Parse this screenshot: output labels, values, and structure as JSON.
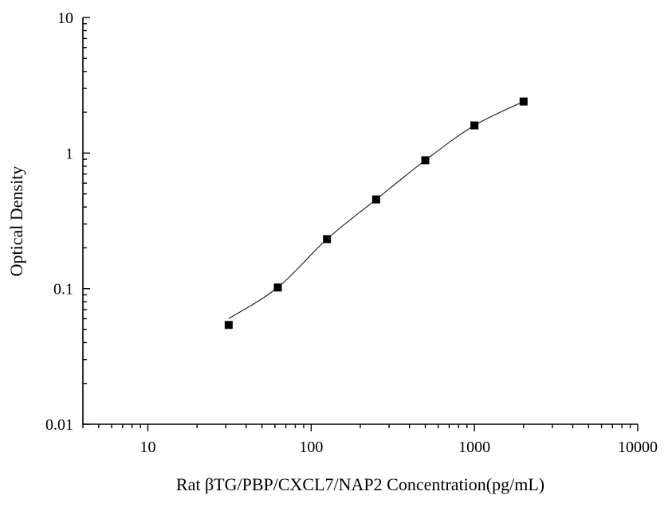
{
  "chart_data": {
    "type": "scatter",
    "title": "",
    "xlabel": "Rat βTG/PBP/CXCL7/NAP2  Concentration(pg/mL)",
    "ylabel": "Optical Density",
    "x_scale": "log",
    "y_scale": "log",
    "xlim": [
      4,
      10000
    ],
    "ylim": [
      0.01,
      10
    ],
    "x_major_ticks": [
      10,
      100,
      1000,
      10000
    ],
    "x_tick_labels": [
      "10",
      "100",
      "1000",
      "10000"
    ],
    "y_major_ticks": [
      0.01,
      0.1,
      1,
      10
    ],
    "y_tick_labels": [
      "0.01",
      "0.1",
      "1",
      "10"
    ],
    "grid": false,
    "legend": "none",
    "series": [
      {
        "x": [
          31.25,
          62.5,
          125,
          250,
          500,
          1000,
          2000
        ],
        "y": [
          0.054,
          0.102,
          0.232,
          0.455,
          0.885,
          1.6,
          2.4
        ],
        "marker": "square",
        "line": "smooth-fit"
      }
    ]
  }
}
